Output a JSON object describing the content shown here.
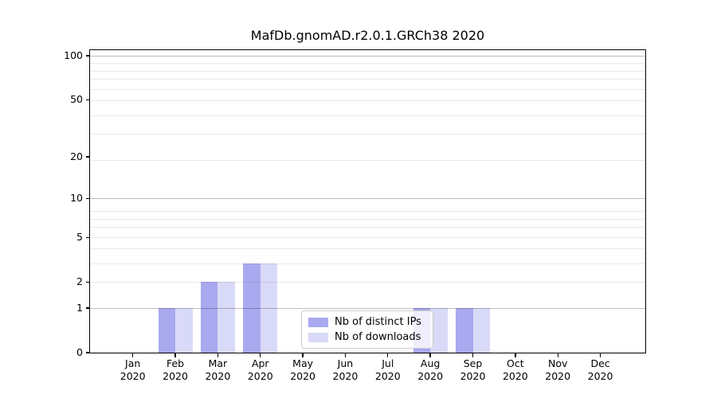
{
  "chart_data": {
    "type": "bar",
    "title": "MafDb.gnomAD.r2.0.1.GRCh38 2020",
    "months": [
      "Jan",
      "Feb",
      "Mar",
      "Apr",
      "May",
      "Jun",
      "Jul",
      "Aug",
      "Sep",
      "Oct",
      "Nov",
      "Dec"
    ],
    "year_label": "2020",
    "series": [
      {
        "name": "Nb of distinct IPs",
        "color": "#a9a9f0",
        "values": [
          0,
          1,
          2,
          3,
          0,
          0,
          0,
          1,
          1,
          0,
          0,
          0
        ]
      },
      {
        "name": "Nb of downloads",
        "color": "#d9d9f8",
        "values": [
          0,
          1,
          2,
          3,
          0,
          0,
          0,
          1,
          1,
          0,
          0,
          0
        ]
      }
    ],
    "xlabel": "",
    "ylabel": "",
    "yscale": "log1p",
    "ylim": [
      0,
      110
    ],
    "ytick_values": [
      0,
      1,
      2,
      5,
      10,
      20,
      50,
      100
    ],
    "ytick_labels": [
      "0",
      "1",
      "2",
      "5",
      "10",
      "20",
      "50",
      "100"
    ],
    "grid": {
      "major_values": [
        1,
        10,
        100
      ],
      "minor_values": [
        2,
        3,
        4,
        5,
        6,
        7,
        8,
        19,
        29,
        39,
        49,
        59,
        69,
        79,
        89
      ]
    },
    "legend": {
      "position": "lower center-right, inside plot",
      "entries": [
        "Nb of distinct IPs",
        "Nb of downloads"
      ]
    }
  }
}
